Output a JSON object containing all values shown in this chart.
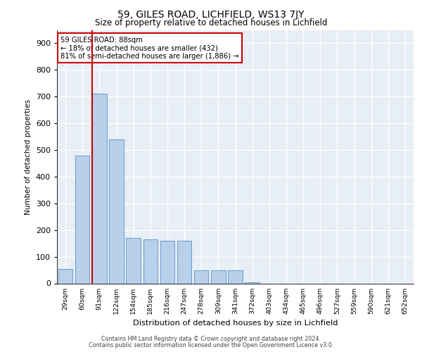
{
  "title_line1": "59, GILES ROAD, LICHFIELD, WS13 7JY",
  "title_line2": "Size of property relative to detached houses in Lichfield",
  "xlabel": "Distribution of detached houses by size in Lichfield",
  "ylabel": "Number of detached properties",
  "categories": [
    "29sqm",
    "60sqm",
    "91sqm",
    "122sqm",
    "154sqm",
    "185sqm",
    "216sqm",
    "247sqm",
    "278sqm",
    "309sqm",
    "341sqm",
    "372sqm",
    "403sqm",
    "434sqm",
    "465sqm",
    "496sqm",
    "527sqm",
    "559sqm",
    "590sqm",
    "621sqm",
    "652sqm"
  ],
  "values": [
    55,
    480,
    710,
    540,
    170,
    165,
    160,
    160,
    50,
    50,
    50,
    5,
    0,
    0,
    0,
    0,
    0,
    0,
    0,
    0,
    0
  ],
  "bar_color": "#b8d0ea",
  "bar_edge_color": "#6699cc",
  "vline_color": "#cc0000",
  "annotation_text": "59 GILES ROAD: 88sqm\n← 18% of detached houses are smaller (432)\n81% of semi-detached houses are larger (1,886) →",
  "annotation_box_color": "#ffffff",
  "annotation_box_edge": "#cc0000",
  "ylim": [
    0,
    950
  ],
  "yticks": [
    0,
    100,
    200,
    300,
    400,
    500,
    600,
    700,
    800,
    900
  ],
  "bg_color": "#e8eef6",
  "grid_color": "#ffffff",
  "footer_line1": "Contains HM Land Registry data © Crown copyright and database right 2024.",
  "footer_line2": "Contains public sector information licensed under the Open Government Licence v3.0."
}
